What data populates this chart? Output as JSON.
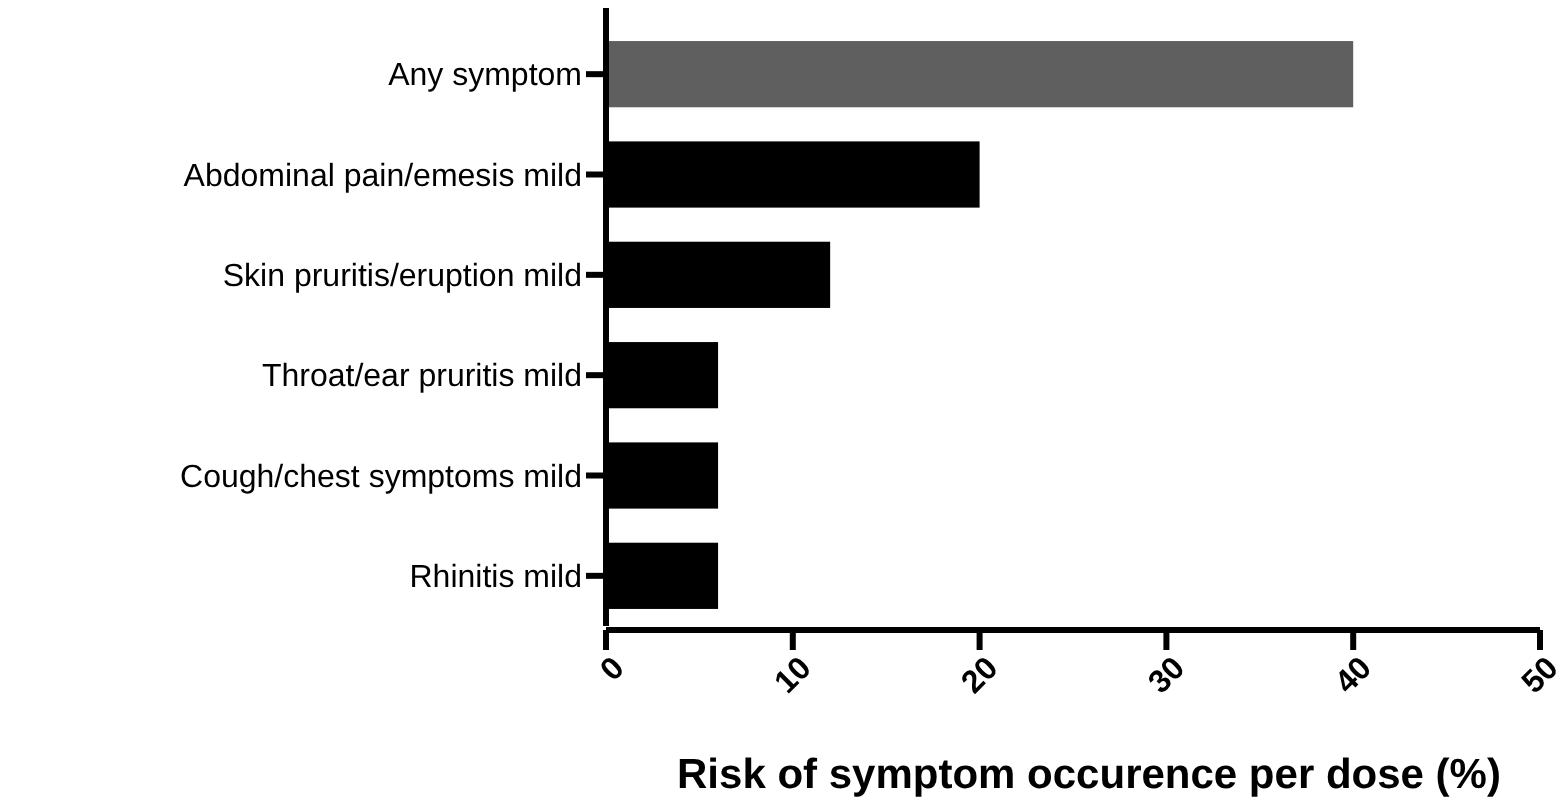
{
  "chart_data": {
    "type": "bar",
    "orientation": "horizontal",
    "xlabel": "Risk of symptom occurence per dose (%)",
    "categories": [
      "Any symptom",
      "Abdominal pain/emesis mild",
      "Skin pruritis/eruption mild",
      "Throat/ear pruritis mild",
      "Cough/chest symptoms mild",
      "Rhinitis mild"
    ],
    "values": [
      40,
      20,
      12,
      6,
      6,
      6
    ],
    "colors": [
      "#5f5f5f",
      "#000000",
      "#000000",
      "#000000",
      "#000000",
      "#000000"
    ],
    "xlim": [
      0,
      50
    ],
    "xticks": [
      0,
      10,
      20,
      30,
      40,
      50
    ],
    "grid": false
  }
}
